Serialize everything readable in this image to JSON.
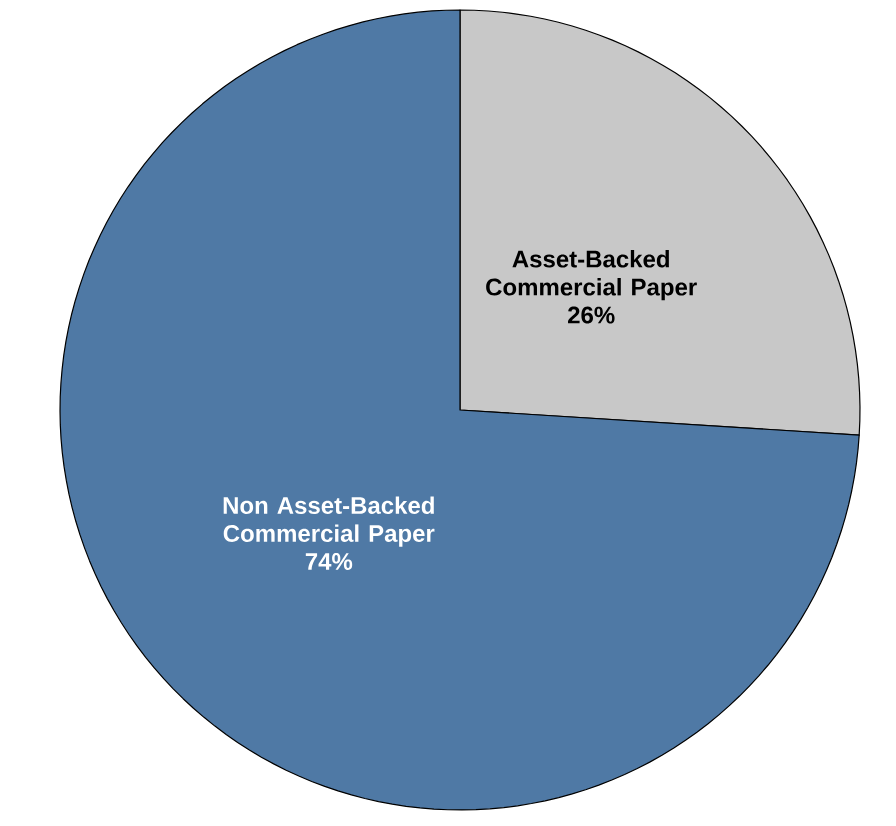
{
  "chart_data": {
    "type": "pie",
    "categories": [
      "Asset-Backed Commercial Paper",
      "Non Asset-Backed Commercial Paper"
    ],
    "values": [
      26,
      74
    ],
    "value_labels": [
      "26%",
      "74%"
    ],
    "colors": [
      "#c8c8c8",
      "#4f79a5"
    ]
  }
}
